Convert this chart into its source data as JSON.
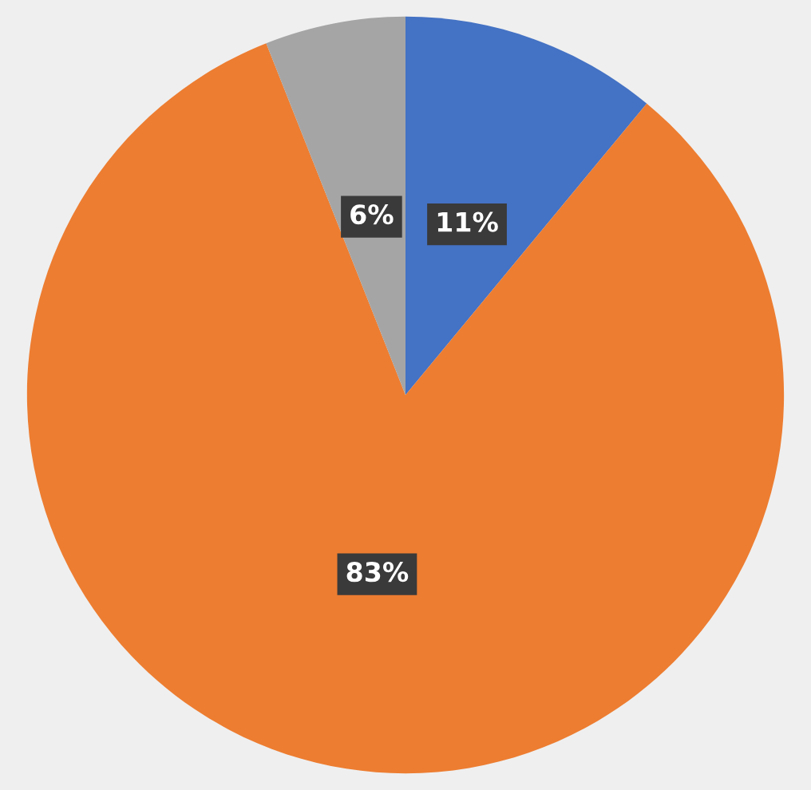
{
  "chart_data": {
    "type": "pie",
    "categories": [
      null,
      null,
      null
    ],
    "values": [
      11,
      83,
      6
    ],
    "colors": [
      "#4472c4",
      "#ed7d31",
      "#a5a5a5"
    ],
    "value_labels": [
      "11%",
      "83%",
      "6%"
    ]
  }
}
